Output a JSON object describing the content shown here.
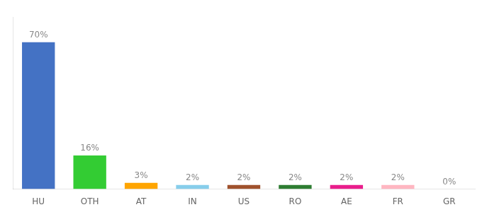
{
  "chart_data": {
    "type": "bar",
    "categories": [
      "HU",
      "OTH",
      "AT",
      "IN",
      "US",
      "RO",
      "AE",
      "FR",
      "GR"
    ],
    "values": [
      70,
      16,
      3,
      2,
      2,
      2,
      2,
      2,
      0
    ],
    "value_labels": [
      "70%",
      "16%",
      "3%",
      "2%",
      "2%",
      "2%",
      "2%",
      "2%",
      "0%"
    ],
    "colors": [
      "#4472C4",
      "#33CC33",
      "#FFA500",
      "#87CEEB",
      "#A0522D",
      "#2E7D32",
      "#E91E8C",
      "#FFB6C1",
      "#CCCCCC"
    ],
    "ylim": [
      0,
      82
    ],
    "yticks": [],
    "grid": false,
    "data_labels": true,
    "tick_labels": "x"
  }
}
